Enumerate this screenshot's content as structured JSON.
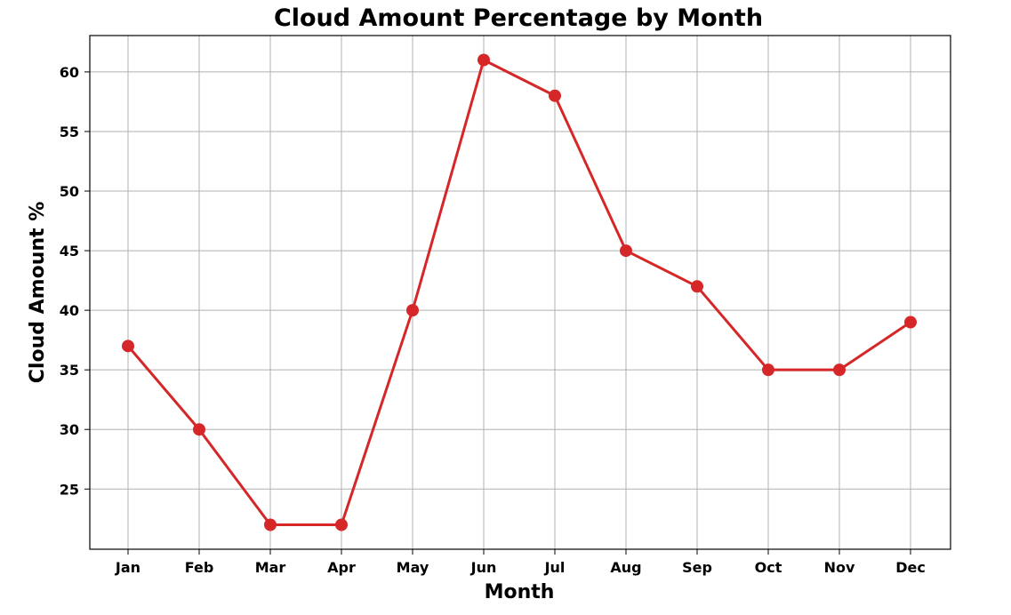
{
  "chart_data": {
    "type": "line",
    "title": "Cloud Amount Percentage by Month",
    "xlabel": "Month",
    "ylabel": "Cloud Amount %",
    "categories": [
      "Jan",
      "Feb",
      "Mar",
      "Apr",
      "May",
      "Jun",
      "Jul",
      "Aug",
      "Sep",
      "Oct",
      "Nov",
      "Dec"
    ],
    "series": [
      {
        "values": [
          37,
          30,
          22,
          22,
          40,
          61,
          58,
          45,
          42,
          35,
          35,
          39
        ],
        "color": "#d62728"
      }
    ],
    "yticks": [
      25,
      30,
      35,
      40,
      45,
      50,
      55,
      60
    ],
    "ylim": [
      19.95,
      63.05
    ],
    "grid": true,
    "marker": "circle"
  }
}
